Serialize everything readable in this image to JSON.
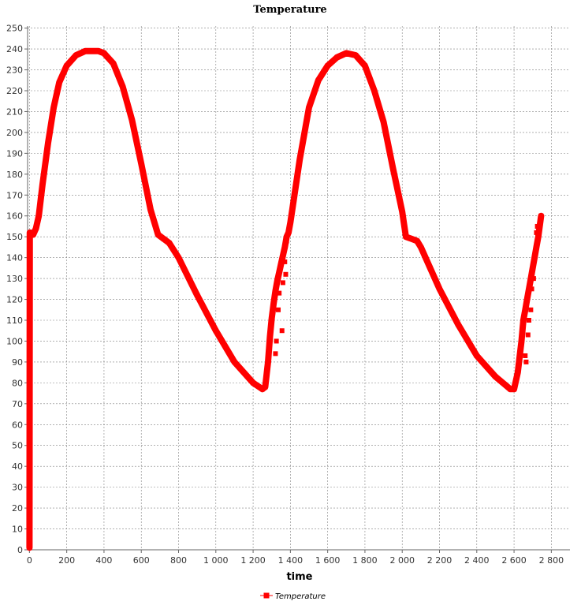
{
  "chart_data": {
    "type": "line",
    "title": "Temperature",
    "xlabel": "time",
    "ylabel": "",
    "xlim": [
      -10,
      2900
    ],
    "ylim": [
      0,
      251
    ],
    "x_ticks": [
      0,
      200,
      400,
      600,
      800,
      1000,
      1200,
      1400,
      1600,
      1800,
      2000,
      2200,
      2400,
      2600,
      2800
    ],
    "x_tick_labels": [
      "0",
      "200",
      "400",
      "600",
      "800",
      "1 000",
      "1 200",
      "1 400",
      "1 600",
      "1 800",
      "2 000",
      "2 200",
      "2 400",
      "2 600",
      "2 800"
    ],
    "y_ticks": [
      0,
      10,
      20,
      30,
      40,
      50,
      60,
      70,
      80,
      90,
      100,
      110,
      120,
      130,
      140,
      150,
      160,
      170,
      180,
      190,
      200,
      210,
      220,
      230,
      240,
      250
    ],
    "grid": true,
    "legend_position": "bottom",
    "series": [
      {
        "name": "Temperature",
        "color": "#ff0000",
        "marker": "square",
        "x": [
          0,
          2,
          5,
          10,
          20,
          35,
          50,
          70,
          100,
          130,
          160,
          200,
          250,
          300,
          340,
          370,
          400,
          450,
          500,
          550,
          600,
          650,
          690,
          720,
          750,
          800,
          850,
          900,
          1000,
          1100,
          1200,
          1250,
          1265,
          1280,
          1290,
          1300,
          1310,
          1320,
          1330,
          1340,
          1350,
          1360,
          1370,
          1380,
          1390,
          1400,
          1450,
          1500,
          1550,
          1600,
          1650,
          1700,
          1750,
          1800,
          1850,
          1900,
          1950,
          2000,
          2020,
          2050,
          2080,
          2100,
          2150,
          2200,
          2300,
          2400,
          2500,
          2580,
          2600,
          2620,
          2640,
          2650,
          2660,
          2670,
          2680,
          2690,
          2700,
          2710,
          2720,
          2730,
          2745
        ],
        "y": [
          1,
          152,
          152,
          151,
          151,
          154,
          160,
          175,
          195,
          212,
          224,
          232,
          237,
          239,
          239,
          239,
          238,
          233,
          222,
          206,
          185,
          163,
          151,
          149,
          147,
          140,
          131,
          122,
          105,
          90,
          80,
          77,
          78,
          90,
          102,
          111,
          118,
          124,
          129,
          133,
          137,
          141,
          145,
          150,
          152,
          157,
          187,
          212,
          225,
          232,
          236,
          238,
          237,
          232,
          220,
          205,
          183,
          162,
          150,
          149,
          148,
          145,
          135,
          125,
          108,
          93,
          83,
          77,
          77,
          85,
          100,
          110,
          115,
          120,
          125,
          130,
          135,
          140,
          145,
          150,
          160
        ]
      }
    ],
    "scatter_points": {
      "x": [
        1320,
        1325,
        1335,
        1340,
        1355,
        1360,
        1370,
        1375,
        1380,
        2660,
        2665,
        2675,
        2680,
        2690,
        2695,
        2705,
        2710,
        2720,
        2725
      ],
      "y": [
        94,
        100,
        115,
        123,
        105,
        128,
        138,
        132,
        148,
        93,
        90,
        103,
        110,
        115,
        125,
        130,
        140,
        152,
        155
      ]
    }
  }
}
